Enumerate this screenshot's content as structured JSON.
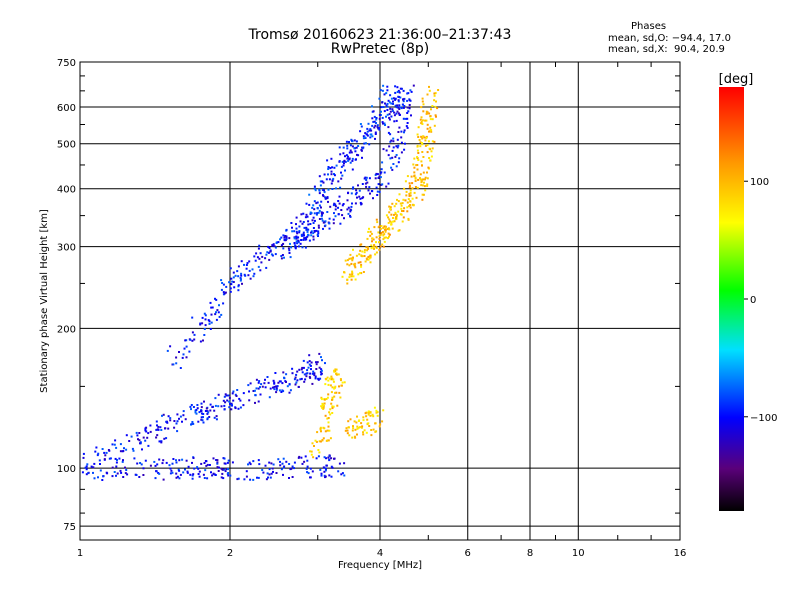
{
  "header": {
    "title_line1": "Tromsø 20160623 21:36:00–21:37:43",
    "title_line2": "RwPretec (8p)"
  },
  "phase_box": {
    "title": "Phases",
    "o_line": "mean, sd,O: −94.4, 17.0",
    "x_line": "mean, sd,X:  90.4, 20.9"
  },
  "colorbar": {
    "unit": "[deg]",
    "ticks": [
      "100",
      "0",
      "−100"
    ],
    "tick_values": [
      100,
      0,
      -100
    ],
    "range": [
      -180,
      180
    ]
  },
  "chart_data": {
    "type": "scatter",
    "xlabel": "Frequency [MHz]",
    "ylabel": "Stationary phase Virtual Height [km]",
    "x_scale": "log",
    "y_scale": "log",
    "xlim": [
      1,
      16
    ],
    "ylim": [
      70,
      750
    ],
    "x_ticks": [
      1,
      2,
      4,
      6,
      8,
      10,
      16
    ],
    "x_tick_labels": [
      "1",
      "2",
      "4",
      "6",
      "8",
      "10",
      "16"
    ],
    "y_ticks": [
      75,
      100,
      200,
      300,
      400,
      500,
      600,
      750
    ],
    "y_tick_labels": [
      "75",
      "100",
      "200",
      "300",
      "400",
      "500",
      "600",
      "750"
    ],
    "grid": true,
    "color_by": "phase",
    "traces": [
      {
        "mode": "O",
        "phase": -100,
        "points": [
          [
            1.0,
            100
          ],
          [
            1.3,
            100
          ],
          [
            1.6,
            100
          ],
          [
            1.8,
            101
          ],
          [
            2.0,
            100
          ],
          [
            2.5,
            100
          ],
          [
            3.0,
            101
          ],
          [
            3.3,
            102
          ]
        ]
      },
      {
        "mode": "O",
        "phase": -100,
        "points": [
          [
            1.0,
            102
          ],
          [
            1.2,
            110
          ],
          [
            1.4,
            120
          ],
          [
            1.6,
            128
          ],
          [
            1.8,
            134
          ],
          [
            2.0,
            140
          ],
          [
            2.3,
            148
          ],
          [
            2.6,
            155
          ],
          [
            2.9,
            162
          ],
          [
            3.0,
            168
          ]
        ]
      },
      {
        "mode": "O",
        "phase": -100,
        "points": [
          [
            1.5,
            170
          ],
          [
            1.8,
            210
          ],
          [
            2.0,
            250
          ],
          [
            2.2,
            280
          ],
          [
            2.5,
            300
          ],
          [
            2.8,
            320
          ],
          [
            3.0,
            340
          ],
          [
            3.3,
            360
          ],
          [
            3.6,
            390
          ],
          [
            4.0,
            420
          ],
          [
            4.3,
            500
          ],
          [
            4.4,
            600
          ],
          [
            4.5,
            640
          ]
        ]
      },
      {
        "mode": "O",
        "phase": -95,
        "points": [
          [
            2.6,
            300
          ],
          [
            2.8,
            330
          ],
          [
            3.0,
            380
          ],
          [
            3.2,
            430
          ],
          [
            3.4,
            470
          ],
          [
            3.6,
            500
          ],
          [
            3.9,
            550
          ],
          [
            4.1,
            600
          ],
          [
            4.2,
            640
          ]
        ]
      },
      {
        "mode": "X",
        "phase": 95,
        "points": [
          [
            3.4,
            260
          ],
          [
            3.6,
            280
          ],
          [
            3.8,
            300
          ],
          [
            4.0,
            320
          ],
          [
            4.2,
            340
          ],
          [
            4.4,
            360
          ],
          [
            4.6,
            390
          ],
          [
            4.8,
            430
          ],
          [
            4.9,
            500
          ],
          [
            5.0,
            560
          ],
          [
            5.0,
            640
          ]
        ]
      },
      {
        "mode": "X",
        "phase": 90,
        "points": [
          [
            3.0,
            110
          ],
          [
            3.1,
            130
          ],
          [
            3.2,
            150
          ],
          [
            3.3,
            160
          ]
        ]
      },
      {
        "mode": "X",
        "phase": 90,
        "points": [
          [
            3.5,
            120
          ],
          [
            3.7,
            125
          ],
          [
            4.0,
            130
          ]
        ]
      }
    ]
  }
}
